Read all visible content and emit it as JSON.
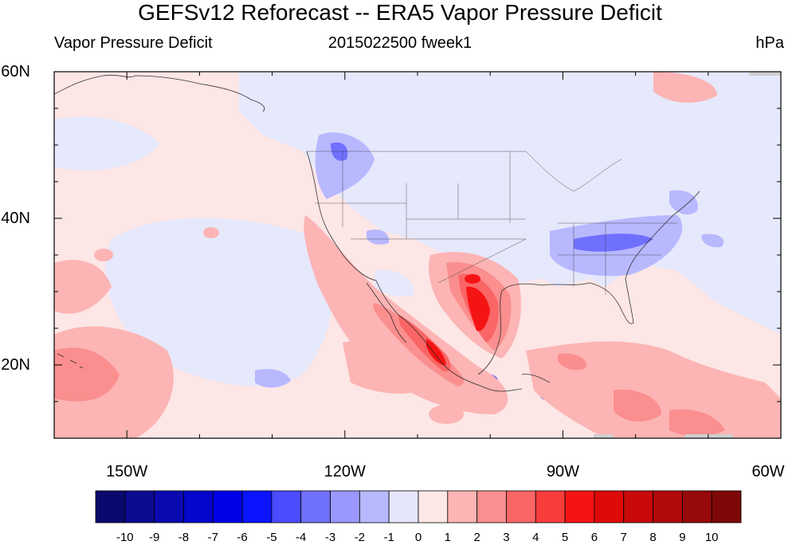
{
  "header": {
    "title": "GEFSv12 Reforecast -- ERA5 Vapor Pressure Deficit",
    "left_subtitle": "Vapor Pressure Deficit",
    "center_subtitle": "2015022500 fweek1",
    "units": "hPa"
  },
  "map": {
    "lon_range": [
      -160,
      -60
    ],
    "lat_range": [
      10,
      60
    ],
    "lat_ticks": [
      {
        "value": 60,
        "label": "60N"
      },
      {
        "value": 40,
        "label": "40N"
      },
      {
        "value": 20,
        "label": "20N"
      }
    ],
    "lon_ticks": [
      {
        "value": -150,
        "label": "150W"
      },
      {
        "value": -120,
        "label": "120W"
      },
      {
        "value": -90,
        "label": "90W"
      },
      {
        "value": -60,
        "label": "60W"
      }
    ],
    "background_field_color": "#fde6e6",
    "negative_field_color": "#e6e8fb"
  },
  "colorbar": {
    "colors": [
      "#0a0a6e",
      "#0b0b8f",
      "#0a0ab0",
      "#0505cc",
      "#0000e6",
      "#0a14ff",
      "#4b4bff",
      "#7070ff",
      "#9898ff",
      "#b8b8ff",
      "#e6e6fb",
      "#fde6e6",
      "#fcb4b4",
      "#fb8e8e",
      "#fa6565",
      "#f83c3c",
      "#f51414",
      "#de0a0a",
      "#c80a0a",
      "#b00a0a",
      "#980909",
      "#7e0808"
    ],
    "labels": [
      "-10",
      "-9",
      "-8",
      "-7",
      "-6",
      "-5",
      "-4",
      "-3",
      "-2",
      "-1",
      "0",
      "1",
      "2",
      "3",
      "4",
      "5",
      "6",
      "7",
      "8",
      "9",
      "10"
    ]
  }
}
